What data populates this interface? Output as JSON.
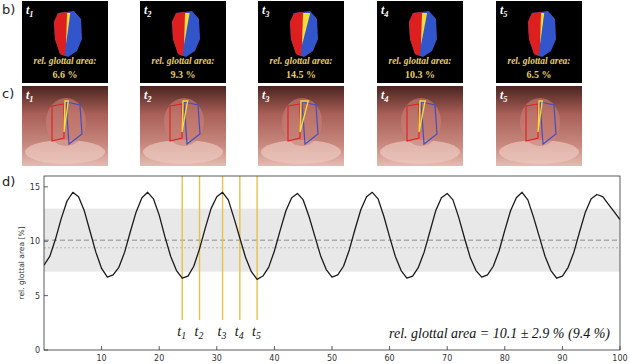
{
  "panel_labels": [
    "b)",
    "c)",
    "d)"
  ],
  "area_caption": "rel. glottal area:",
  "frames": [
    {
      "label": "t",
      "sub": "1",
      "area_text": "6.6 %"
    },
    {
      "label": "t",
      "sub": "2",
      "area_text": "9.3 %"
    },
    {
      "label": "t",
      "sub": "3",
      "area_text": "14.5 %"
    },
    {
      "label": "t",
      "sub": "4",
      "area_text": "10.3 %"
    },
    {
      "label": "t",
      "sub": "5",
      "area_text": "6.5 %"
    }
  ],
  "chart_data": {
    "type": "line",
    "y_label": "rel. glottal area [%]",
    "x": [
      0,
      1,
      2,
      3,
      4,
      5,
      6,
      7,
      8,
      9,
      10,
      11,
      12,
      13,
      14,
      15,
      16,
      17,
      18,
      19,
      20,
      21,
      22,
      23,
      24,
      25,
      26,
      27,
      28,
      29,
      30,
      31,
      32,
      33,
      34,
      35,
      36,
      37,
      38,
      39,
      40,
      41,
      42,
      43,
      44,
      45,
      46,
      47,
      48,
      49,
      50,
      51,
      52,
      53,
      54,
      55,
      56,
      57,
      58,
      59,
      60,
      61,
      62,
      63,
      64,
      65,
      66,
      67,
      68,
      69,
      70,
      71,
      72,
      73,
      74,
      75,
      76,
      77,
      78,
      79,
      80,
      81,
      82,
      83,
      84,
      85,
      86,
      87,
      88,
      89,
      90,
      91,
      92,
      93,
      94,
      95,
      96,
      97,
      98,
      99,
      100
    ],
    "series": [
      {
        "color": "#1a1a1a",
        "values": [
          7.8,
          8.6,
          10.2,
          12.1,
          13.7,
          14.5,
          14.1,
          12.8,
          10.9,
          9.0,
          7.5,
          6.7,
          6.9,
          7.6,
          9.0,
          10.9,
          12.7,
          14.0,
          14.5,
          13.9,
          12.4,
          10.4,
          8.6,
          7.3,
          6.6,
          6.8,
          7.7,
          9.3,
          11.2,
          13.0,
          14.1,
          14.5,
          13.8,
          12.1,
          10.3,
          8.5,
          7.2,
          6.5,
          6.8,
          7.6,
          9.1,
          11.0,
          12.8,
          14.0,
          14.4,
          13.8,
          12.3,
          10.5,
          8.7,
          7.4,
          6.7,
          6.9,
          7.7,
          9.2,
          11.1,
          12.9,
          14.1,
          14.5,
          13.9,
          12.3,
          10.4,
          8.6,
          7.3,
          6.6,
          6.8,
          7.6,
          9.0,
          10.9,
          12.8,
          14.0,
          14.4,
          13.8,
          12.2,
          10.3,
          8.5,
          7.3,
          6.7,
          6.9,
          7.7,
          9.1,
          11.0,
          12.8,
          14.0,
          14.5,
          13.8,
          12.2,
          10.4,
          8.6,
          7.3,
          6.6,
          6.8,
          7.6,
          9.0,
          10.9,
          12.7,
          13.9,
          14.3,
          14.1,
          13.4,
          12.7,
          12.0
        ]
      }
    ],
    "xlim": [
      0,
      100
    ],
    "xticks": [
      10,
      20,
      30,
      40,
      50,
      60,
      70,
      80,
      90,
      100
    ],
    "ylim": [
      0,
      16
    ],
    "yticks": [
      0,
      5,
      10,
      15
    ],
    "band": {
      "mean": 10.1,
      "std": 2.9,
      "median": 9.4
    },
    "markers": [
      {
        "x": 24,
        "label": "t",
        "sub": "1"
      },
      {
        "x": 27,
        "label": "t",
        "sub": "2"
      },
      {
        "x": 31,
        "label": "t",
        "sub": "3"
      },
      {
        "x": 34,
        "label": "t",
        "sub": "4"
      },
      {
        "x": 37,
        "label": "t",
        "sub": "5"
      }
    ],
    "annotation": "rel. glottal area = 10.1 ± 2.9 % (9.4 %)",
    "grid": false
  }
}
